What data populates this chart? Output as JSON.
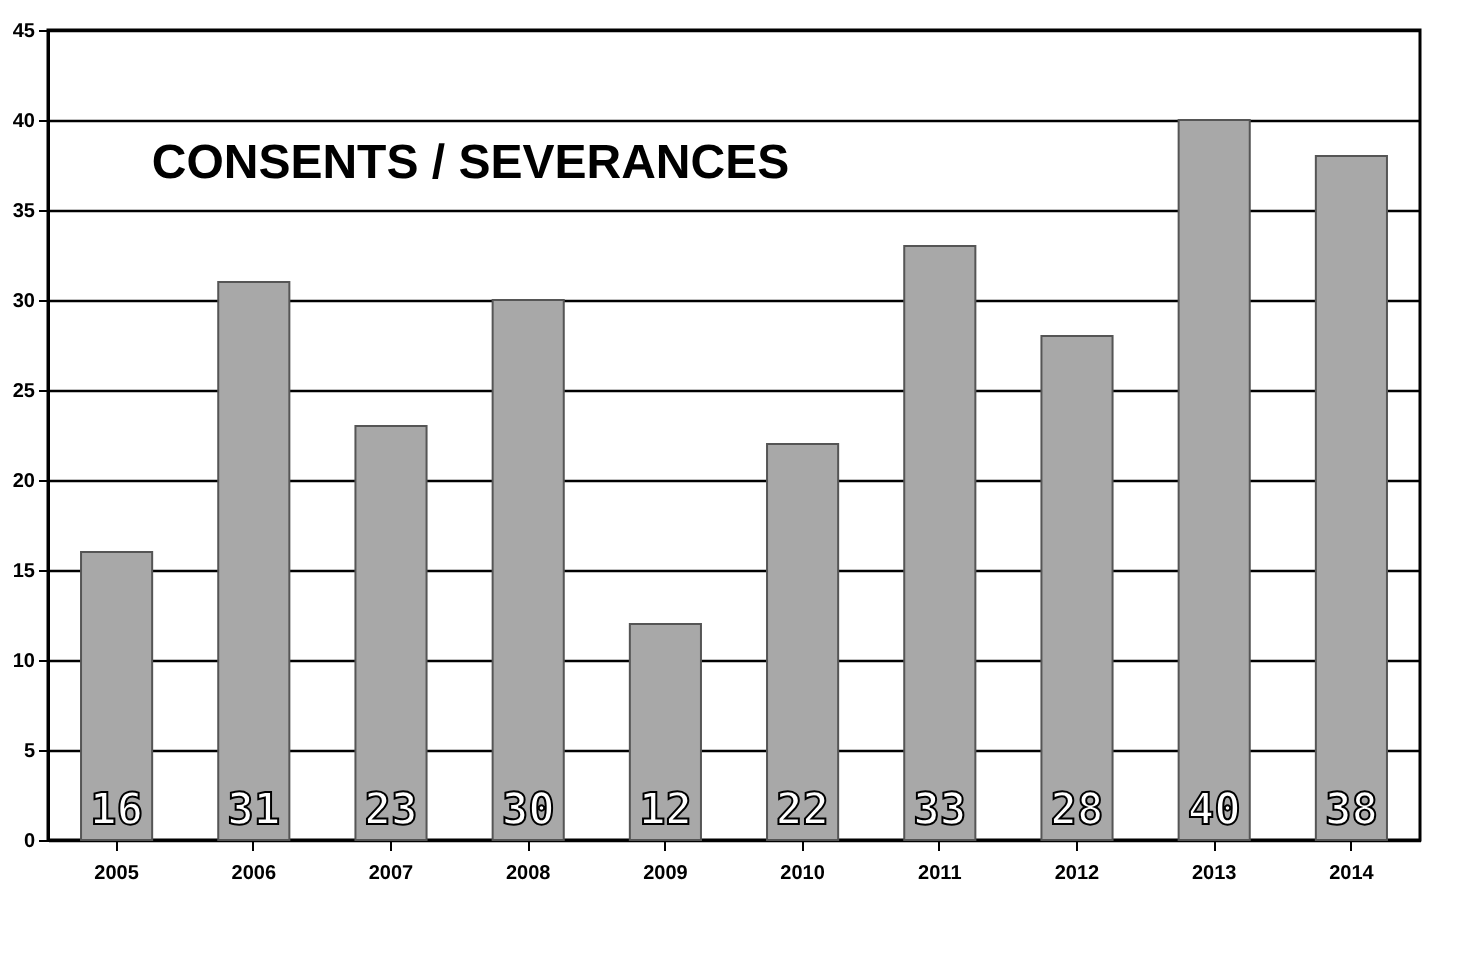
{
  "chart_data": {
    "type": "bar",
    "title": "CONSENTS / SEVERANCES",
    "categories": [
      "2005",
      "2006",
      "2007",
      "2008",
      "2009",
      "2010",
      "2011",
      "2012",
      "2013",
      "2014"
    ],
    "values": [
      16,
      31,
      23,
      30,
      12,
      22,
      33,
      28,
      40,
      38
    ],
    "color": "#a8a8a8",
    "ylim": [
      0,
      45
    ],
    "yticks": [
      0,
      5,
      10,
      15,
      20,
      25,
      30,
      35,
      40,
      45
    ],
    "grid": "y",
    "data_labels": true
  }
}
